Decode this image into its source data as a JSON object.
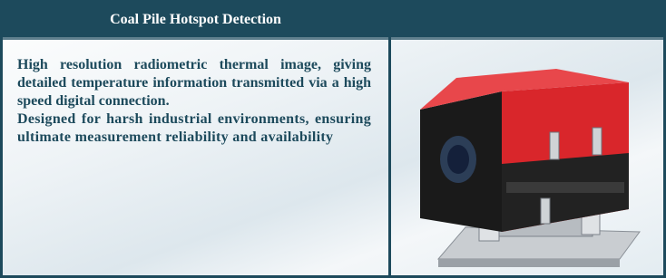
{
  "header": {
    "title": "Coal Pile Hotspot Detection"
  },
  "body": {
    "paragraphs": [
      "High resolution radiometric thermal image, giving detailed temperature information transmitted via a high speed digital connection.",
      "Designed for harsh industrial environments, ensuring ultimate measurement reliability and availability"
    ]
  }
}
